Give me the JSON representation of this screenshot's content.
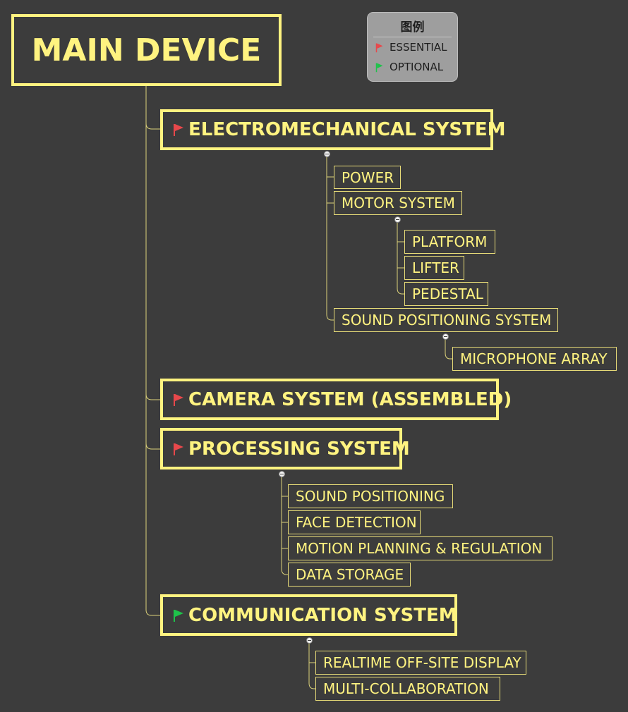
{
  "legend": {
    "title": "图例",
    "items": [
      {
        "label": "ESSENTIAL",
        "flag_color": "#e8484b"
      },
      {
        "label": "OPTIONAL",
        "flag_color": "#1ec24a"
      }
    ]
  },
  "root": {
    "label": "MAIN DEVICE"
  },
  "systems": [
    {
      "label": "ELECTROMECHANICAL SYSTEM",
      "flag": "essential",
      "children": [
        {
          "label": "POWER"
        },
        {
          "label": "MOTOR SYSTEM",
          "children": [
            {
              "label": "PLATFORM"
            },
            {
              "label": "LIFTER"
            },
            {
              "label": "PEDESTAL"
            }
          ]
        },
        {
          "label": "SOUND POSITIONING SYSTEM",
          "children": [
            {
              "label": "MICROPHONE ARRAY"
            }
          ]
        }
      ]
    },
    {
      "label": "CAMERA SYSTEM (ASSEMBLED)",
      "flag": "essential",
      "children": []
    },
    {
      "label": "PROCESSING SYSTEM",
      "flag": "essential",
      "children": [
        {
          "label": "SOUND POSITIONING"
        },
        {
          "label": "FACE DETECTION"
        },
        {
          "label": "MOTION PLANNING & REGULATION"
        },
        {
          "label": "DATA STORAGE"
        }
      ]
    },
    {
      "label": "COMMUNICATION SYSTEM",
      "flag": "optional",
      "children": [
        {
          "label": "REALTIME OFF-SITE DISPLAY"
        },
        {
          "label": "MULTI-COLLABORATION"
        }
      ]
    }
  ],
  "colors": {
    "background": "#3c3c3c",
    "node_border": "#fff380",
    "node_text": "#fff380",
    "essential_flag": "#e8484b",
    "optional_flag": "#1ec24a",
    "legend_bg": "#9e9e9e"
  }
}
